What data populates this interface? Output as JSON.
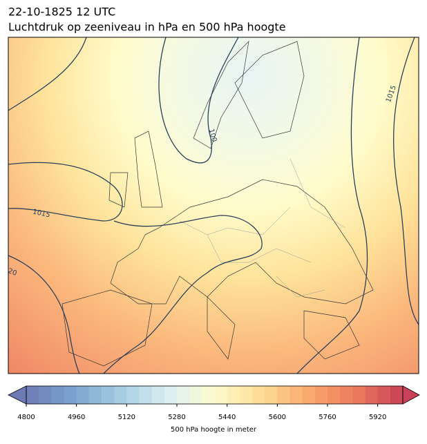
{
  "title": "22-10-1825 12 UTC",
  "subtitle": "Luchtdruk op zeeniveau in hPa en 500 hPa hoogte",
  "contour_labels": [
    "1015",
    "1015",
    "100",
    "20"
  ],
  "colorbar": {
    "label": "500 hPa hoogte in meter",
    "min": 4800,
    "max": 6000,
    "step": 40,
    "ticks": [
      4800,
      4960,
      5120,
      5280,
      5440,
      5600,
      5760,
      5920
    ]
  }
}
